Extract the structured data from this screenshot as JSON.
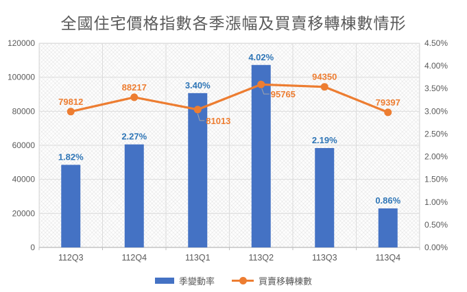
{
  "chart_data": {
    "type": "combo-bar-line",
    "title": "全國住宅價格指數各季漲幅及買賣移轉棟數情形",
    "categories": [
      "112Q3",
      "112Q4",
      "113Q1",
      "113Q2",
      "113Q3",
      "113Q4"
    ],
    "series": [
      {
        "name": "季變動率",
        "type": "bar",
        "axis": "right",
        "color": "#4472C4",
        "label_color": "#2E75B6",
        "values": [
          1.82,
          2.27,
          3.4,
          4.02,
          2.19,
          0.86
        ],
        "labels": [
          "1.82%",
          "2.27%",
          "3.40%",
          "4.02%",
          "2.19%",
          "0.86%"
        ]
      },
      {
        "name": "買賣移轉棟數",
        "type": "line",
        "axis": "left",
        "color": "#ED7D31",
        "label_color": "#ED7D31",
        "values": [
          79812,
          88217,
          81013,
          95765,
          94350,
          79397
        ],
        "labels": [
          "79812",
          "88217",
          "81013",
          "95765",
          "94350",
          "79397"
        ],
        "label_placement": [
          "above",
          "above",
          "below-right",
          "right",
          "above",
          "above"
        ]
      }
    ],
    "axes": {
      "left": {
        "min": 0,
        "max": 120000,
        "tick_labels": [
          "0",
          "20000",
          "40000",
          "60000",
          "80000",
          "100000",
          "120000"
        ]
      },
      "right": {
        "min": 0,
        "max": 4.5,
        "tick_labels": [
          "0.00%",
          "0.50%",
          "1.00%",
          "1.50%",
          "2.00%",
          "2.50%",
          "3.00%",
          "3.50%",
          "4.00%",
          "4.50%"
        ]
      }
    },
    "grid": {
      "horizontal": true,
      "vertical": true,
      "color": "#DCDCDC",
      "axis_line_color": "#BFBFBF"
    },
    "colors": {
      "text": "#595959",
      "title": "#595959",
      "leader_line": "#A6A6A6"
    },
    "legend": {
      "position": "bottom"
    }
  }
}
